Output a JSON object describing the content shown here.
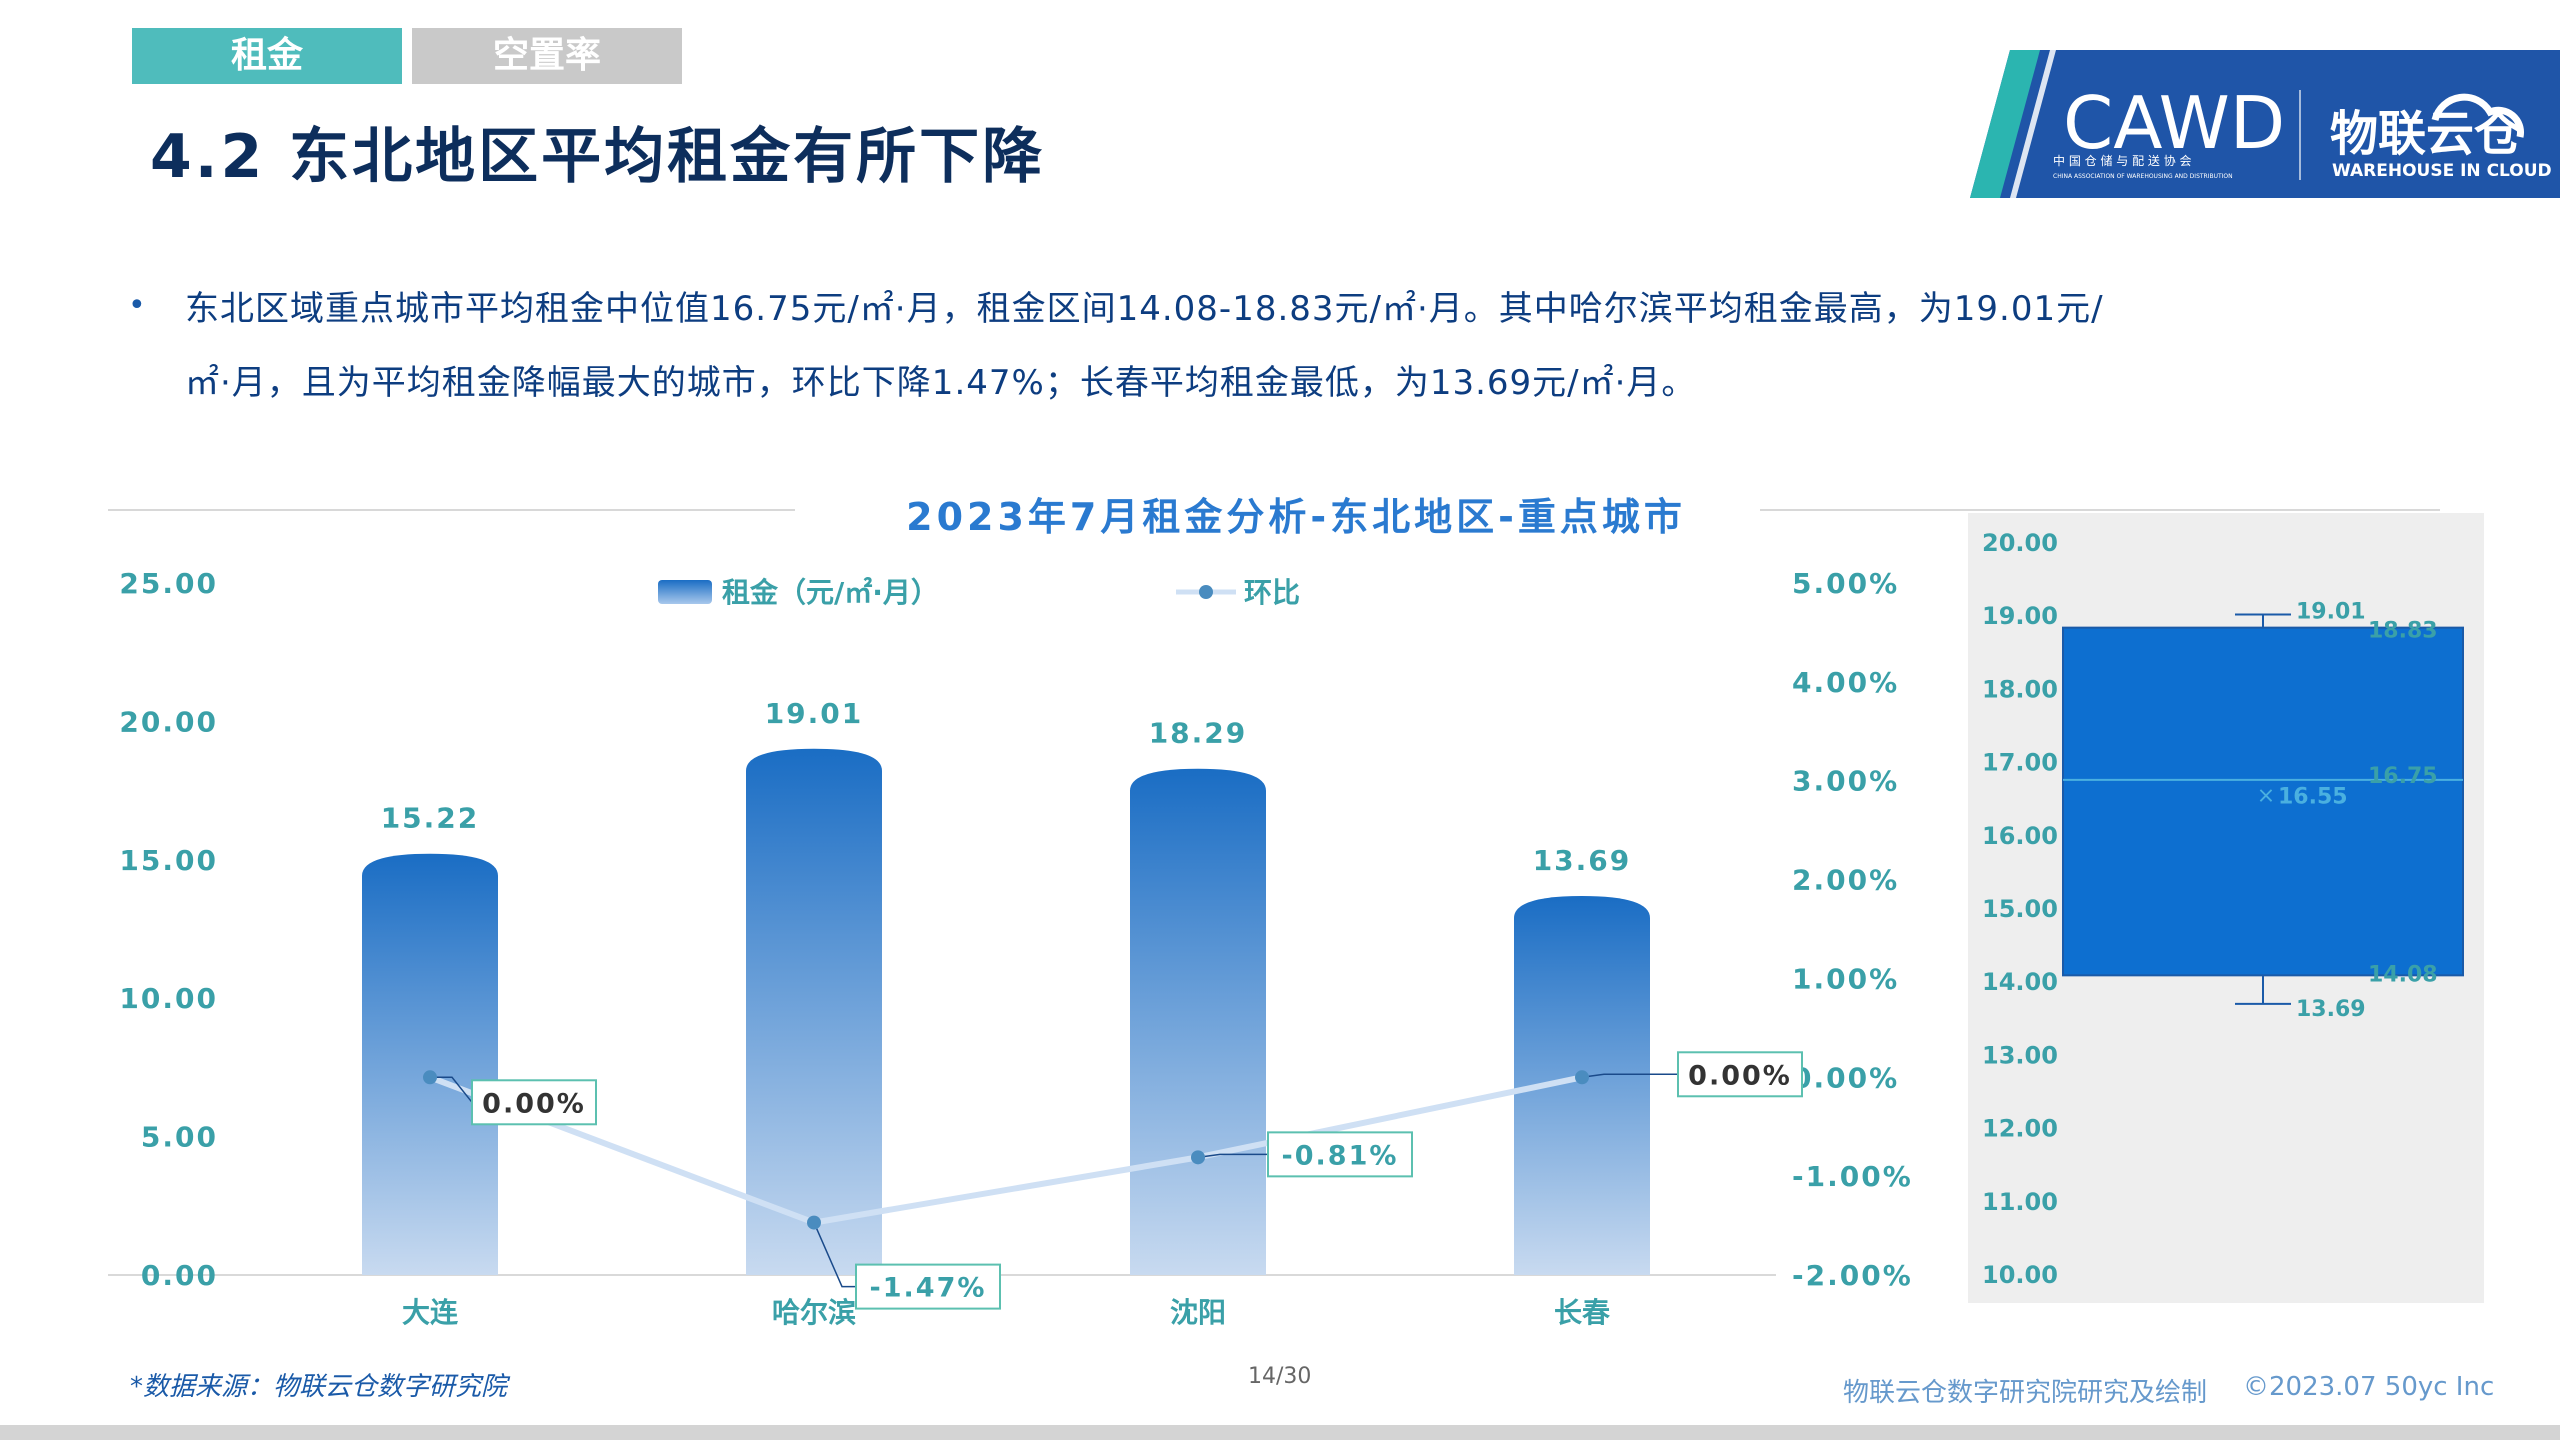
{
  "tabs": [
    {
      "label": "租金",
      "active": true
    },
    {
      "label": "空置率",
      "active": false
    }
  ],
  "page_title": "4.2 东北地区平均租金有所下降",
  "logo": {
    "cawd": "CAWD",
    "cawd_sub1": "中 国 仓 储 与 配 送 协 会",
    "cawd_sub2": "CHINA ASSOCIATION OF WAREHOUSING AND DISTRIBUTION",
    "brand": "物联云仓",
    "brand_en": "WAREHOUSE IN CLOUD"
  },
  "bullet": {
    "line1": "东北区域重点城市平均租金中位值16.75元/㎡·月，租金区间14.08-18.83元/㎡·月。其中哈尔滨平均租金最高，为19.01元/",
    "line2": "㎡·月，且为平均租金降幅最大的城市，环比下降1.47%；长春平均租金最低，为13.69元/㎡·月。"
  },
  "chart_data": [
    {
      "type": "bar",
      "title": "2023年7月租金分析-东北地区-重点城市",
      "categories": [
        "大连",
        "哈尔滨",
        "沈阳",
        "长春"
      ],
      "series": [
        {
          "name": "租金（元/㎡·月）",
          "type": "bar",
          "axis": "left",
          "values": [
            15.22,
            19.01,
            18.29,
            13.69
          ],
          "labels": [
            "15.22",
            "19.01",
            "18.29",
            "13.69"
          ]
        },
        {
          "name": "环比",
          "type": "line",
          "axis": "right",
          "values": [
            0.0,
            -1.47,
            -0.81,
            0.0
          ],
          "labels": [
            "0.00%",
            "-1.47%",
            "-0.81%",
            "0.00%"
          ]
        }
      ],
      "y_left": {
        "ticks": [
          "25.00",
          "20.00",
          "15.00",
          "10.00",
          "5.00",
          "0.00"
        ],
        "range": [
          0,
          25
        ]
      },
      "y_right": {
        "ticks": [
          "5.00%",
          "4.00%",
          "3.00%",
          "2.00%",
          "1.00%",
          "0.00%",
          "-1.00%",
          "-2.00%"
        ],
        "range": [
          -2,
          5
        ]
      },
      "legend": "top-center",
      "colors": {
        "bar_top": "#1a6dc4",
        "bar_bottom": "#c8daf0",
        "line": "#cfe0f4",
        "point": "#4a8cbf",
        "label_border": "#5cc0b0"
      }
    },
    {
      "type": "box",
      "y_ticks": [
        "20.00",
        "19.00",
        "18.00",
        "17.00",
        "16.00",
        "15.00",
        "14.00",
        "13.00",
        "12.00",
        "11.00",
        "10.00"
      ],
      "range": [
        10,
        20
      ],
      "min": 13.69,
      "q1": 14.08,
      "median": 16.75,
      "mean": 16.55,
      "q3": 18.83,
      "max": 19.01,
      "labels": {
        "max": "19.01",
        "q3": "18.83",
        "median": "16.75",
        "mean": "16.55",
        "q1": "14.08",
        "min": "13.69"
      },
      "colors": {
        "box": "#0d6fd0",
        "background": "#eeeeee",
        "label": "#3aa0a8"
      }
    }
  ],
  "footer": {
    "source": "*数据来源：物联云仓数字研究院",
    "page": "14/30",
    "credit": "物联云仓数字研究院研究及绘制",
    "copyright": "©2023.07 50yc Inc"
  }
}
